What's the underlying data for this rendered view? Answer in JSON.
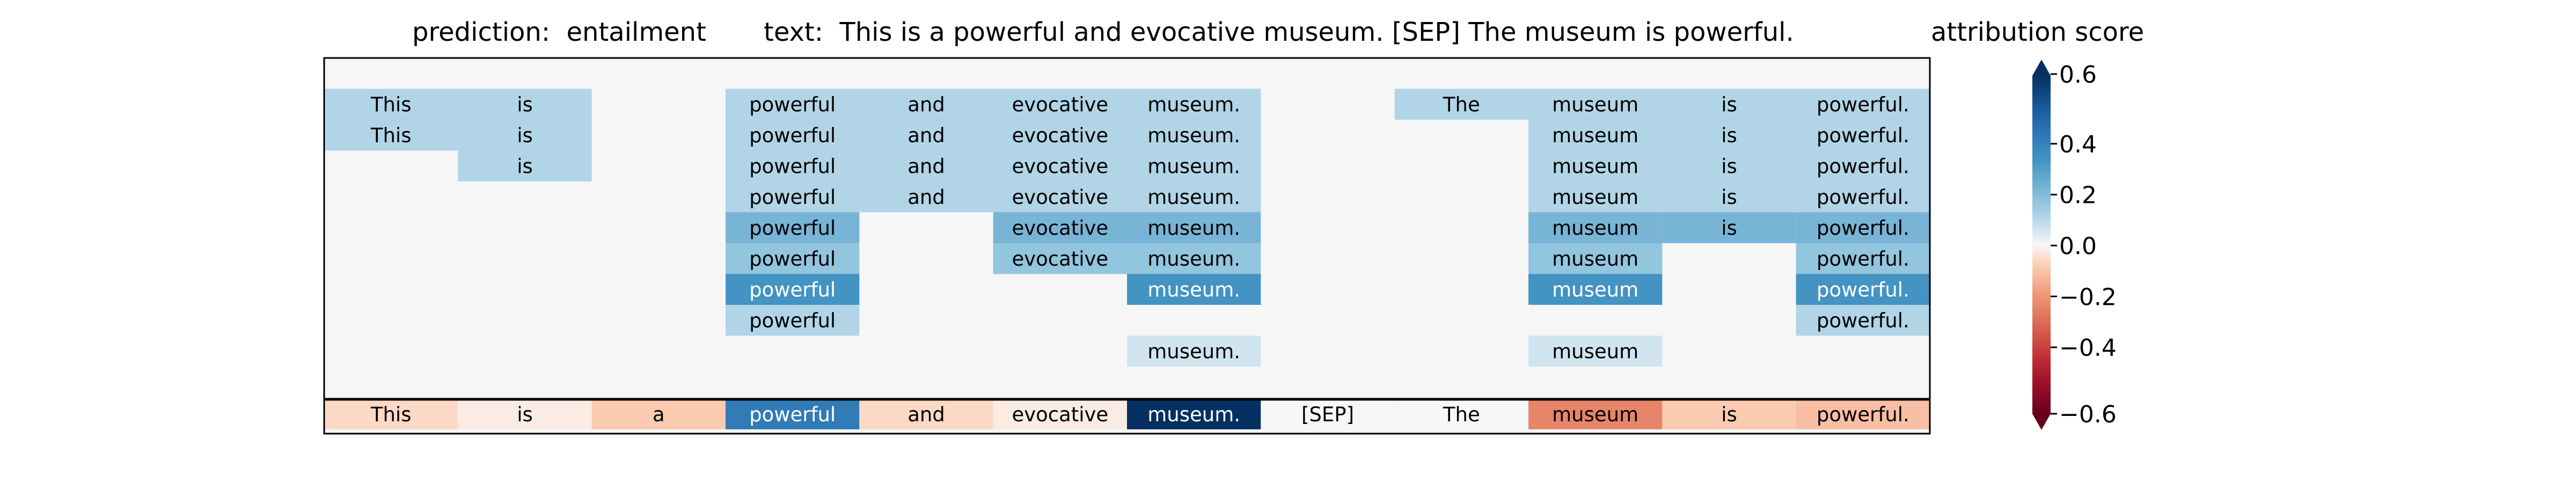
{
  "chart_data": {
    "type": "heatmap",
    "title_prediction": "prediction:  entailment",
    "title_text": "text:  This is a powerful and evocative museum. [SEP] The museum is powerful.",
    "colorbar_title": "attribution score",
    "colorbar_range": [
      -0.6,
      0.6
    ],
    "colorbar_ticks": [
      "0.6",
      "0.4",
      "0.2",
      "0.0",
      "−0.2",
      "−0.4",
      "−0.6"
    ],
    "colorbar_tick_values": [
      0.6,
      0.4,
      0.2,
      0.0,
      -0.2,
      -0.4,
      -0.6
    ],
    "colormap": "RdBu",
    "background_color": "#f5f6f5",
    "tokens": [
      "This",
      "is",
      "a",
      "powerful",
      "and",
      "evocative",
      "museum.",
      "[SEP]",
      "The",
      "museum",
      "is",
      "powerful."
    ],
    "rows": [
      [
        null,
        null,
        null,
        null,
        null,
        null,
        null,
        null,
        null,
        null,
        null,
        null
      ],
      [
        0.1,
        0.1,
        null,
        0.1,
        0.1,
        0.1,
        0.1,
        null,
        0.1,
        0.1,
        0.1,
        0.1
      ],
      [
        0.1,
        0.1,
        null,
        0.1,
        0.1,
        0.1,
        0.1,
        null,
        null,
        0.1,
        0.1,
        0.1
      ],
      [
        null,
        0.1,
        null,
        0.1,
        0.1,
        0.1,
        0.1,
        null,
        null,
        0.1,
        0.1,
        0.1
      ],
      [
        null,
        null,
        null,
        0.1,
        0.1,
        0.1,
        0.1,
        null,
        null,
        0.1,
        0.1,
        0.1
      ],
      [
        null,
        null,
        null,
        0.2,
        null,
        0.2,
        0.2,
        null,
        null,
        0.2,
        0.2,
        0.2
      ],
      [
        null,
        null,
        null,
        0.15,
        null,
        0.15,
        0.15,
        null,
        null,
        0.15,
        null,
        0.15
      ],
      [
        null,
        null,
        null,
        0.3,
        null,
        null,
        0.3,
        null,
        null,
        0.3,
        null,
        0.3
      ],
      [
        null,
        null,
        null,
        0.1,
        null,
        null,
        null,
        null,
        null,
        null,
        null,
        0.1
      ],
      [
        null,
        null,
        null,
        null,
        null,
        null,
        0.05,
        null,
        null,
        0.05,
        null,
        null
      ]
    ],
    "bottom_row": [
      -0.05,
      -0.02,
      -0.08,
      0.38,
      -0.05,
      -0.02,
      0.62,
      0.0,
      0.0,
      -0.22,
      -0.08,
      -0.1
    ]
  }
}
